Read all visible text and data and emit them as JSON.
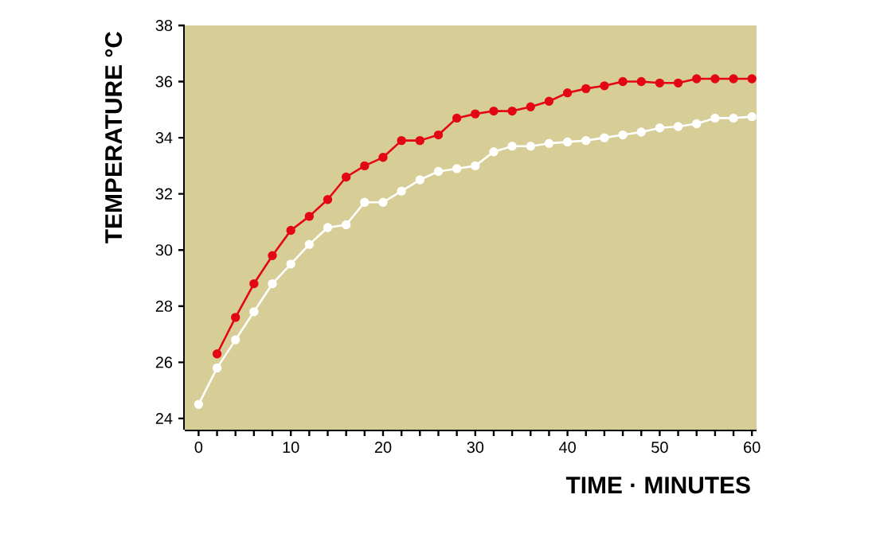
{
  "chart_data": {
    "type": "line",
    "xlabel": "TIME · MINUTES",
    "ylabel": "TEMPERATURE °C",
    "x": [
      0,
      2,
      4,
      6,
      8,
      10,
      12,
      14,
      16,
      18,
      20,
      22,
      24,
      26,
      28,
      30,
      32,
      34,
      36,
      38,
      40,
      42,
      44,
      46,
      48,
      50,
      52,
      54,
      56,
      58,
      60
    ],
    "series": [
      {
        "color": "#e30613",
        "values": [
          null,
          26.3,
          27.6,
          28.8,
          29.8,
          30.7,
          31.2,
          31.8,
          32.6,
          33.0,
          33.3,
          33.9,
          33.9,
          34.1,
          34.7,
          34.85,
          34.95,
          34.95,
          35.1,
          35.3,
          35.6,
          35.75,
          35.85,
          36.0,
          36.0,
          35.95,
          35.95,
          36.1,
          36.1,
          36.1,
          36.1
        ]
      },
      {
        "color": "#ffffff",
        "values": [
          24.5,
          25.8,
          26.8,
          27.8,
          28.8,
          29.5,
          30.2,
          30.8,
          30.9,
          31.7,
          31.7,
          32.1,
          32.5,
          32.8,
          32.9,
          33.0,
          33.5,
          33.7,
          33.7,
          33.8,
          33.85,
          33.9,
          34.0,
          34.1,
          34.2,
          34.35,
          34.4,
          34.5,
          34.7,
          34.7,
          34.75
        ]
      }
    ],
    "xlim": [
      -1.5,
      60.5
    ],
    "ylim": [
      23.6,
      38
    ],
    "xticks": [
      0,
      {
        "value": 2,
        "label": null
      },
      {
        "value": 4,
        "label": null
      },
      {
        "value": 6,
        "label": null
      },
      {
        "value": 8,
        "label": null
      },
      10,
      {
        "value": 12,
        "label": null
      },
      {
        "value": 14,
        "label": null
      },
      {
        "value": 16,
        "label": null
      },
      {
        "value": 18,
        "label": null
      },
      20,
      {
        "value": 22,
        "label": null
      },
      {
        "value": 24,
        "label": null
      },
      {
        "value": 26,
        "label": null
      },
      {
        "value": 28,
        "label": null
      },
      30,
      {
        "value": 32,
        "label": null
      },
      {
        "value": 34,
        "label": null
      },
      {
        "value": 36,
        "label": null
      },
      {
        "value": 38,
        "label": null
      },
      40,
      {
        "value": 42,
        "label": null
      },
      {
        "value": 44,
        "label": null
      },
      {
        "value": 46,
        "label": null
      },
      {
        "value": 48,
        "label": null
      },
      50,
      {
        "value": 52,
        "label": null
      },
      {
        "value": 54,
        "label": null
      },
      {
        "value": 56,
        "label": null
      },
      {
        "value": 58,
        "label": null
      },
      60
    ],
    "yticks": [
      24,
      26,
      28,
      30,
      32,
      34,
      36,
      38
    ],
    "marker": "circle",
    "line_style": "solid",
    "grid": false
  }
}
